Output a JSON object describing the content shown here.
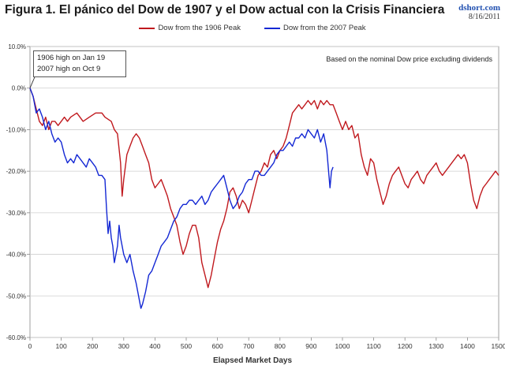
{
  "header": {
    "title": "Figura 1. El pánico del Dow de 1907 y el Dow actual con la Crisis Financiera",
    "site": "dshort.com",
    "date": "8/16/2011"
  },
  "annotations": {
    "callout_line1": "1906 high on Jan 19",
    "callout_line2": "2007 high on Oct 9",
    "note": "Based on the nominal Dow price excluding dividends"
  },
  "colors": {
    "series_1906": "#c0191e",
    "series_2007": "#1428d4",
    "grid": "#cfcfcf",
    "axis": "#888888"
  },
  "chart_data": {
    "type": "line",
    "title": "Figura 1. El pánico del Dow de 1907 y el Dow actual con la Crisis Financiera",
    "xlabel": "Elapsed Market Days",
    "ylabel": "",
    "xlim": [
      0,
      1500
    ],
    "ylim": [
      -60,
      10
    ],
    "x_ticks": [
      0,
      100,
      200,
      300,
      400,
      500,
      600,
      700,
      800,
      900,
      1000,
      1100,
      1200,
      1300,
      1400,
      1500
    ],
    "y_ticks": [
      10,
      0,
      -10,
      -20,
      -30,
      -40,
      -50,
      -60
    ],
    "y_tick_labels": [
      "10.0%",
      "0.0%",
      "-10.0%",
      "-20.0%",
      "-30.0%",
      "-40.0%",
      "-50.0%",
      "-60.0%"
    ],
    "grid": true,
    "legend_position": "top-center",
    "series": [
      {
        "name": "Dow from the 1906 Peak",
        "color": "#c0191e",
        "points": [
          [
            0,
            0
          ],
          [
            10,
            -2
          ],
          [
            20,
            -5
          ],
          [
            30,
            -8
          ],
          [
            40,
            -9
          ],
          [
            50,
            -7
          ],
          [
            60,
            -10
          ],
          [
            70,
            -8
          ],
          [
            80,
            -8
          ],
          [
            90,
            -9
          ],
          [
            100,
            -8
          ],
          [
            110,
            -7
          ],
          [
            120,
            -8
          ],
          [
            130,
            -7
          ],
          [
            150,
            -6
          ],
          [
            170,
            -8
          ],
          [
            190,
            -7
          ],
          [
            210,
            -6
          ],
          [
            230,
            -6
          ],
          [
            240,
            -7
          ],
          [
            260,
            -8
          ],
          [
            270,
            -10
          ],
          [
            280,
            -11
          ],
          [
            290,
            -18
          ],
          [
            295,
            -26
          ],
          [
            300,
            -22
          ],
          [
            310,
            -16
          ],
          [
            320,
            -14
          ],
          [
            330,
            -12
          ],
          [
            340,
            -11
          ],
          [
            350,
            -12
          ],
          [
            360,
            -14
          ],
          [
            370,
            -16
          ],
          [
            380,
            -18
          ],
          [
            390,
            -22
          ],
          [
            400,
            -24
          ],
          [
            410,
            -23
          ],
          [
            420,
            -22
          ],
          [
            430,
            -24
          ],
          [
            440,
            -26
          ],
          [
            450,
            -29
          ],
          [
            460,
            -31
          ],
          [
            470,
            -33
          ],
          [
            480,
            -37
          ],
          [
            490,
            -40
          ],
          [
            500,
            -38
          ],
          [
            510,
            -35
          ],
          [
            520,
            -33
          ],
          [
            530,
            -33
          ],
          [
            540,
            -36
          ],
          [
            550,
            -42
          ],
          [
            560,
            -45
          ],
          [
            570,
            -48
          ],
          [
            580,
            -45
          ],
          [
            590,
            -41
          ],
          [
            600,
            -37
          ],
          [
            610,
            -34
          ],
          [
            620,
            -32
          ],
          [
            630,
            -29
          ],
          [
            640,
            -25
          ],
          [
            650,
            -24
          ],
          [
            660,
            -26
          ],
          [
            670,
            -29
          ],
          [
            680,
            -27
          ],
          [
            690,
            -28
          ],
          [
            700,
            -30
          ],
          [
            710,
            -27
          ],
          [
            720,
            -24
          ],
          [
            730,
            -21
          ],
          [
            740,
            -20
          ],
          [
            750,
            -18
          ],
          [
            760,
            -19
          ],
          [
            770,
            -16
          ],
          [
            780,
            -15
          ],
          [
            790,
            -17
          ],
          [
            800,
            -15
          ],
          [
            810,
            -14
          ],
          [
            820,
            -12
          ],
          [
            830,
            -9
          ],
          [
            840,
            -6
          ],
          [
            850,
            -5
          ],
          [
            860,
            -4
          ],
          [
            870,
            -5
          ],
          [
            880,
            -4
          ],
          [
            890,
            -3
          ],
          [
            900,
            -4
          ],
          [
            910,
            -3
          ],
          [
            920,
            -5
          ],
          [
            930,
            -3
          ],
          [
            940,
            -4
          ],
          [
            950,
            -3
          ],
          [
            960,
            -4
          ],
          [
            970,
            -4
          ],
          [
            980,
            -6
          ],
          [
            990,
            -8
          ],
          [
            1000,
            -10
          ],
          [
            1010,
            -8
          ],
          [
            1020,
            -10
          ],
          [
            1030,
            -9
          ],
          [
            1040,
            -12
          ],
          [
            1050,
            -11
          ],
          [
            1060,
            -16
          ],
          [
            1070,
            -19
          ],
          [
            1080,
            -21
          ],
          [
            1090,
            -17
          ],
          [
            1100,
            -18
          ],
          [
            1110,
            -22
          ],
          [
            1120,
            -25
          ],
          [
            1130,
            -28
          ],
          [
            1140,
            -26
          ],
          [
            1150,
            -23
          ],
          [
            1160,
            -21
          ],
          [
            1170,
            -20
          ],
          [
            1180,
            -19
          ],
          [
            1190,
            -21
          ],
          [
            1200,
            -23
          ],
          [
            1210,
            -24
          ],
          [
            1220,
            -22
          ],
          [
            1230,
            -21
          ],
          [
            1240,
            -20
          ],
          [
            1250,
            -22
          ],
          [
            1260,
            -23
          ],
          [
            1270,
            -21
          ],
          [
            1280,
            -20
          ],
          [
            1290,
            -19
          ],
          [
            1300,
            -18
          ],
          [
            1310,
            -20
          ],
          [
            1320,
            -21
          ],
          [
            1330,
            -20
          ],
          [
            1340,
            -19
          ],
          [
            1350,
            -18
          ],
          [
            1360,
            -17
          ],
          [
            1370,
            -16
          ],
          [
            1380,
            -17
          ],
          [
            1390,
            -16
          ],
          [
            1400,
            -18
          ],
          [
            1410,
            -23
          ],
          [
            1420,
            -27
          ],
          [
            1430,
            -29
          ],
          [
            1440,
            -26
          ],
          [
            1450,
            -24
          ],
          [
            1460,
            -23
          ],
          [
            1470,
            -22
          ],
          [
            1480,
            -21
          ],
          [
            1490,
            -20
          ],
          [
            1500,
            -21
          ]
        ]
      },
      {
        "name": "Dow from the 2007 Peak",
        "color": "#1428d4",
        "points": [
          [
            0,
            0
          ],
          [
            10,
            -2
          ],
          [
            20,
            -6
          ],
          [
            30,
            -5
          ],
          [
            40,
            -7
          ],
          [
            50,
            -10
          ],
          [
            60,
            -8
          ],
          [
            70,
            -11
          ],
          [
            80,
            -13
          ],
          [
            90,
            -12
          ],
          [
            100,
            -13
          ],
          [
            110,
            -16
          ],
          [
            120,
            -18
          ],
          [
            130,
            -17
          ],
          [
            140,
            -18
          ],
          [
            150,
            -16
          ],
          [
            160,
            -17
          ],
          [
            170,
            -18
          ],
          [
            180,
            -19
          ],
          [
            190,
            -17
          ],
          [
            200,
            -18
          ],
          [
            210,
            -19
          ],
          [
            220,
            -21
          ],
          [
            230,
            -21
          ],
          [
            240,
            -22
          ],
          [
            245,
            -29
          ],
          [
            250,
            -35
          ],
          [
            255,
            -32
          ],
          [
            260,
            -36
          ],
          [
            265,
            -38
          ],
          [
            270,
            -42
          ],
          [
            280,
            -38
          ],
          [
            285,
            -33
          ],
          [
            290,
            -36
          ],
          [
            300,
            -40
          ],
          [
            310,
            -42
          ],
          [
            320,
            -40
          ],
          [
            330,
            -44
          ],
          [
            340,
            -47
          ],
          [
            350,
            -51
          ],
          [
            355,
            -53
          ],
          [
            360,
            -52
          ],
          [
            370,
            -49
          ],
          [
            380,
            -45
          ],
          [
            390,
            -44
          ],
          [
            400,
            -42
          ],
          [
            410,
            -40
          ],
          [
            420,
            -38
          ],
          [
            430,
            -37
          ],
          [
            440,
            -36
          ],
          [
            450,
            -34
          ],
          [
            460,
            -32
          ],
          [
            470,
            -31
          ],
          [
            480,
            -29
          ],
          [
            490,
            -28
          ],
          [
            500,
            -28
          ],
          [
            510,
            -27
          ],
          [
            520,
            -27
          ],
          [
            530,
            -28
          ],
          [
            540,
            -27
          ],
          [
            550,
            -26
          ],
          [
            560,
            -28
          ],
          [
            570,
            -27
          ],
          [
            580,
            -25
          ],
          [
            590,
            -24
          ],
          [
            600,
            -23
          ],
          [
            610,
            -22
          ],
          [
            620,
            -21
          ],
          [
            630,
            -24
          ],
          [
            640,
            -27
          ],
          [
            650,
            -29
          ],
          [
            660,
            -28
          ],
          [
            670,
            -26
          ],
          [
            680,
            -25
          ],
          [
            690,
            -23
          ],
          [
            700,
            -22
          ],
          [
            710,
            -22
          ],
          [
            720,
            -20
          ],
          [
            730,
            -20
          ],
          [
            740,
            -21
          ],
          [
            750,
            -21
          ],
          [
            760,
            -20
          ],
          [
            770,
            -19
          ],
          [
            780,
            -18
          ],
          [
            790,
            -16
          ],
          [
            800,
            -15
          ],
          [
            810,
            -15
          ],
          [
            820,
            -14
          ],
          [
            830,
            -13
          ],
          [
            840,
            -14
          ],
          [
            850,
            -12
          ],
          [
            860,
            -12
          ],
          [
            870,
            -11
          ],
          [
            880,
            -12
          ],
          [
            890,
            -10
          ],
          [
            900,
            -11
          ],
          [
            910,
            -12
          ],
          [
            920,
            -10
          ],
          [
            930,
            -13
          ],
          [
            940,
            -11
          ],
          [
            950,
            -15
          ],
          [
            960,
            -24
          ],
          [
            965,
            -20
          ],
          [
            970,
            -19
          ]
        ]
      }
    ]
  }
}
